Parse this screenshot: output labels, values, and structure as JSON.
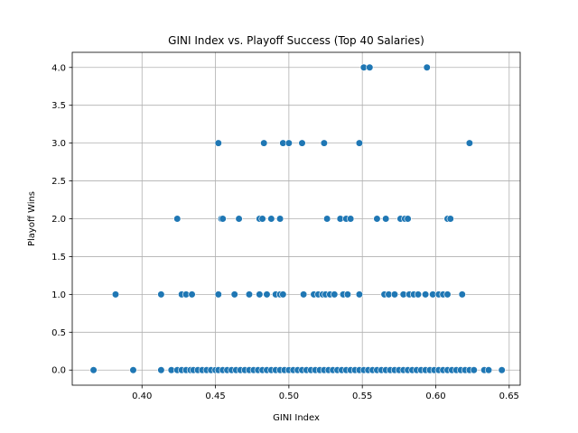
{
  "chart_data": {
    "type": "scatter",
    "title": "GINI Index vs. Playoff Success (Top 40 Salaries)",
    "xlabel": "GINI Index",
    "ylabel": "Playoff Wins",
    "xlim": [
      0.3525,
      0.6575
    ],
    "ylim": [
      -0.2,
      4.2
    ],
    "xticks": [
      0.4,
      0.45,
      0.5,
      0.55,
      0.6,
      0.65
    ],
    "xtick_labels": [
      "0.40",
      "0.45",
      "0.50",
      "0.55",
      "0.60",
      "0.65"
    ],
    "yticks": [
      0.0,
      0.5,
      1.0,
      1.5,
      2.0,
      2.5,
      3.0,
      3.5,
      4.0
    ],
    "ytick_labels": [
      "0.0",
      "0.5",
      "1.0",
      "1.5",
      "2.0",
      "2.5",
      "3.0",
      "3.5",
      "4.0"
    ],
    "grid": true,
    "marker_color": "#1f77b4",
    "series": [
      {
        "x": [
          0.367,
          0.394,
          0.413,
          0.42,
          0.424,
          0.427,
          0.43,
          0.433,
          0.435,
          0.438,
          0.441,
          0.444,
          0.447,
          0.45,
          0.452,
          0.455,
          0.458,
          0.461,
          0.464,
          0.467,
          0.47,
          0.473,
          0.476,
          0.479,
          0.482,
          0.485,
          0.488,
          0.491,
          0.494,
          0.497,
          0.5,
          0.503,
          0.506,
          0.509,
          0.512,
          0.515,
          0.518,
          0.521,
          0.524,
          0.527,
          0.53,
          0.533,
          0.536,
          0.539,
          0.542,
          0.545,
          0.548,
          0.551,
          0.554,
          0.557,
          0.56,
          0.563,
          0.566,
          0.569,
          0.572,
          0.575,
          0.578,
          0.581,
          0.584,
          0.587,
          0.59,
          0.593,
          0.596,
          0.599,
          0.602,
          0.605,
          0.608,
          0.611,
          0.614,
          0.617,
          0.62,
          0.623,
          0.626,
          0.633,
          0.636,
          0.645,
          0.382,
          0.413,
          0.427,
          0.43,
          0.434,
          0.452,
          0.463,
          0.473,
          0.48,
          0.485,
          0.491,
          0.494,
          0.496,
          0.51,
          0.517,
          0.52,
          0.523,
          0.525,
          0.528,
          0.531,
          0.537,
          0.54,
          0.548,
          0.565,
          0.568,
          0.572,
          0.578,
          0.582,
          0.585,
          0.588,
          0.593,
          0.598,
          0.602,
          0.605,
          0.608,
          0.618,
          0.424,
          0.454,
          0.455,
          0.466,
          0.48,
          0.482,
          0.488,
          0.494,
          0.526,
          0.535,
          0.539,
          0.542,
          0.56,
          0.566,
          0.576,
          0.579,
          0.581,
          0.608,
          0.61,
          0.452,
          0.483,
          0.496,
          0.5,
          0.509,
          0.524,
          0.548,
          0.623,
          0.551,
          0.555,
          0.594
        ],
        "y": [
          0,
          0,
          0,
          0,
          0,
          0,
          0,
          0,
          0,
          0,
          0,
          0,
          0,
          0,
          0,
          0,
          0,
          0,
          0,
          0,
          0,
          0,
          0,
          0,
          0,
          0,
          0,
          0,
          0,
          0,
          0,
          0,
          0,
          0,
          0,
          0,
          0,
          0,
          0,
          0,
          0,
          0,
          0,
          0,
          0,
          0,
          0,
          0,
          0,
          0,
          0,
          0,
          0,
          0,
          0,
          0,
          0,
          0,
          0,
          0,
          0,
          0,
          0,
          0,
          0,
          0,
          0,
          0,
          0,
          0,
          0,
          0,
          0,
          0,
          0,
          0,
          1,
          1,
          1,
          1,
          1,
          1,
          1,
          1,
          1,
          1,
          1,
          1,
          1,
          1,
          1,
          1,
          1,
          1,
          1,
          1,
          1,
          1,
          1,
          1,
          1,
          1,
          1,
          1,
          1,
          1,
          1,
          1,
          1,
          1,
          1,
          1,
          2,
          2,
          2,
          2,
          2,
          2,
          2,
          2,
          2,
          2,
          2,
          2,
          2,
          2,
          2,
          2,
          2,
          2,
          2,
          3,
          3,
          3,
          3,
          3,
          3,
          3,
          3,
          4,
          4,
          4
        ]
      }
    ]
  }
}
